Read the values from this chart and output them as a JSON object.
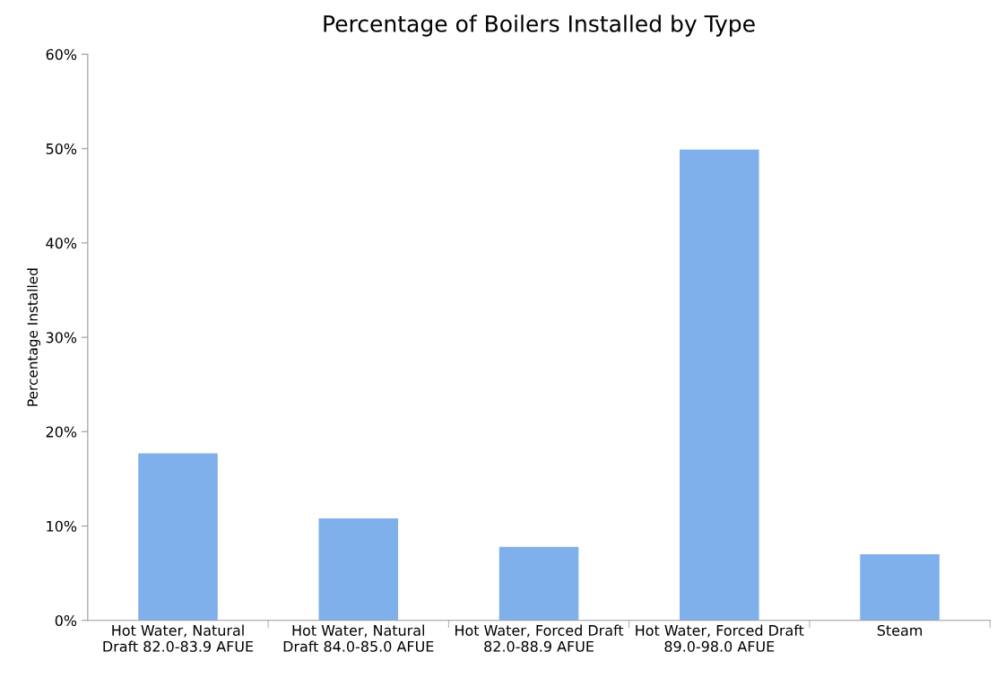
{
  "chart_data": {
    "type": "bar",
    "title": "Percentage of Boilers Installed by Type",
    "ylabel": "Percentage Installed",
    "categories": [
      "Hot Water, Natural\nDraft 82.0-83.9 AFUE",
      "Hot Water, Natural\nDraft 84.0-85.0 AFUE",
      "Hot Water, Forced Draft\n82.0-88.9 AFUE",
      "Hot Water, Forced Draft\n89.0-98.0 AFUE",
      "Steam"
    ],
    "values": [
      17.7,
      10.8,
      7.8,
      49.9,
      7.0
    ],
    "color": "#7fb0ec",
    "ylim": [
      0,
      60
    ],
    "yticks": [
      {
        "value": 0,
        "label": "0%"
      },
      {
        "value": 10,
        "label": "10%"
      },
      {
        "value": 20,
        "label": "20%"
      },
      {
        "value": 30,
        "label": "30%"
      },
      {
        "value": 40,
        "label": "40%"
      },
      {
        "value": 50,
        "label": "50%"
      },
      {
        "value": 60,
        "label": "60%"
      }
    ],
    "grid": false
  }
}
